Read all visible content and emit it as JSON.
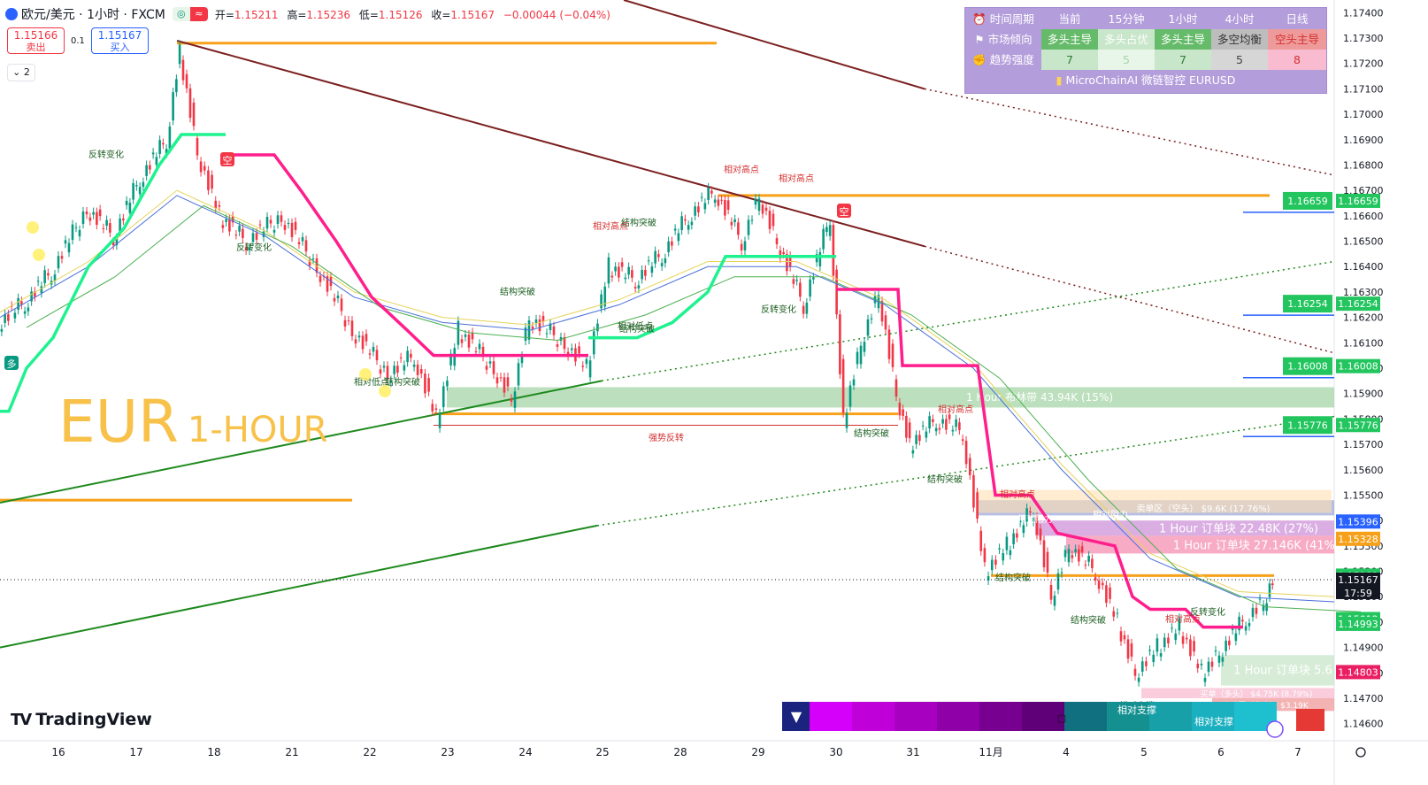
{
  "header": {
    "symbol": "欧元/美元 · 1小时 · FXCM",
    "toggle_left": "◎",
    "toggle_right": "≈",
    "open_label": "开=",
    "open": "1.15211",
    "high_label": "高=",
    "high": "1.15236",
    "low_label": "低=",
    "low": "1.15126",
    "close_label": "收=",
    "close": "1.15167",
    "change": "−0.00044 (−0.04%)"
  },
  "trade": {
    "sell_price": "1.15166",
    "sell_label": "卖出",
    "spread": "0.1",
    "buy_price": "1.15167",
    "buy_label": "买入"
  },
  "collapse_label": "⌄ 2",
  "watermark": {
    "main": "EUR",
    "sub": "1-HOUR"
  },
  "logo": {
    "mark": "TV",
    "text": "TradingView"
  },
  "colors": {
    "bull_candle": "#089981",
    "bear_candle": "#f23645",
    "trail_bull": "#1ef28f",
    "trail_bear": "#ff1e8c",
    "orange_level": "#f7a11a",
    "trend_dark": "#7b1f1f",
    "trend_green": "#1e8a1e"
  },
  "table": {
    "headers": [
      "时间周期",
      "当前",
      "15分钟",
      "1小时",
      "4小时",
      "日线"
    ],
    "row1": [
      "市场倾向",
      "多头主导",
      "多头占优",
      "多头主导",
      "多空均衡",
      "空头主导"
    ],
    "row2": [
      "趋势强度",
      "7",
      "5",
      "7",
      "5",
      "8"
    ],
    "footer": "MicroChainAI 微链智控 EURUSD"
  },
  "chart_data": {
    "type": "candlestick",
    "title": "欧元/美元 · 1小时 · FXCM",
    "x_tick_labels": [
      "16",
      "17",
      "18",
      "21",
      "22",
      "23",
      "24",
      "25",
      "28",
      "29",
      "30",
      "31",
      "11月",
      "4",
      "5",
      "6",
      "7"
    ],
    "y_tick_labels": [
      "1.17400",
      "1.17300",
      "1.17200",
      "1.17100",
      "1.17000",
      "1.16900",
      "1.16800",
      "1.16700",
      "1.16600",
      "1.16500",
      "1.16400",
      "1.16300",
      "1.16200",
      "1.16100",
      "1.16000",
      "1.15900",
      "1.15800",
      "1.15700",
      "1.15600",
      "1.15500",
      "1.15400",
      "1.15300",
      "1.15200",
      "1.15100",
      "1.15000",
      "1.14900",
      "1.14800",
      "1.14700",
      "1.14600"
    ],
    "ylim": [
      1.1455,
      1.1745
    ],
    "price_badges": [
      {
        "value": "1.16659",
        "color": "#22c55e"
      },
      {
        "value": "1.16254",
        "color": "#22c55e"
      },
      {
        "value": "1.16008",
        "color": "#22c55e"
      },
      {
        "value": "1.15776",
        "color": "#22c55e"
      },
      {
        "value": "1.15396",
        "color": "#2962ff"
      },
      {
        "value": "1.15328",
        "color": "#f7a11a"
      },
      {
        "value": "1.15183",
        "color": "#22c55e"
      },
      {
        "value": "1.15167",
        "color": "#131722"
      },
      {
        "value": "1.15012",
        "color": "#22c55e"
      },
      {
        "value": "1.14993",
        "color": "#22c55e"
      },
      {
        "value": "1.14803",
        "color": "#e91e63"
      }
    ],
    "countdown": "17:59",
    "zones": [
      {
        "label": "1 Hour 布林带 43.94K (15%)",
        "y1": 1.15925,
        "y2": 1.15845,
        "color": "#a5d6a7"
      },
      {
        "label": "卖单区（空头） $9.6K (17.76%)",
        "y1": 1.1548,
        "y2": 1.1542,
        "color": "#9fa8da"
      },
      {
        "label": "1 Hour 订单块 22.48K (27%)",
        "y1": 1.154,
        "y2": 1.1534,
        "color": "#ce93d8"
      },
      {
        "label": "1 Hour 订单块 27.146K (41%)",
        "y1": 1.1534,
        "y2": 1.1527,
        "color": "#f48fb1"
      },
      {
        "label": "1 Hour 订单块 5.6",
        "y1": 1.1487,
        "y2": 1.1475,
        "color": "#c8e6c9"
      },
      {
        "label": "买单（多头） $4.75K (8.79%)",
        "y1": 1.1474,
        "y2": 1.147,
        "color": "#f8bbd0"
      },
      {
        "label": "买单区（多头） $3.19K",
        "y1": 1.147,
        "y2": 1.1465,
        "color": "#ef9a9a"
      }
    ],
    "annotations": [
      "反转变化",
      "空",
      "多",
      "反转变化",
      "相对高点",
      "结构突破",
      "相对高点",
      "相对高点",
      "空",
      "反转变化",
      "相对高点",
      "结构突破",
      "相对低点",
      "结构突破",
      "强势反转",
      "结构突破",
      "结构突破",
      "相对高点",
      "相对阻力",
      "相对阻力",
      "相对支撑",
      "结构突破",
      "结构突破",
      "相对高点",
      "反转变化",
      "相对支撑",
      "结构突破",
      "相对低点"
    ],
    "bottom_strip": {
      "left_icon": "▼",
      "mid_icon": "▢",
      "labels": [
        "相对支撑",
        "相对支撑"
      ]
    }
  }
}
